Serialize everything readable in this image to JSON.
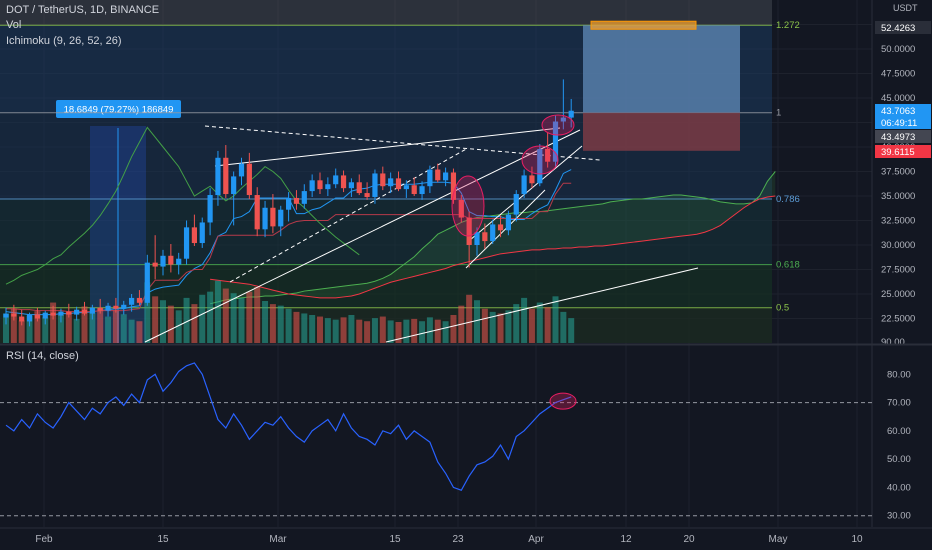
{
  "header": {
    "symbol_line": "DOT / TetherUS, 1D, BINANCE",
    "vol_label": "Vol",
    "ichimoku_label": "Ichimoku (9, 26, 52, 26)",
    "rsi_label": "RSI (14, close)",
    "currency": "USDT"
  },
  "measure_label": "18.6849 (79.27%) 186849",
  "colors": {
    "background": "#131722",
    "up": "#2196f3",
    "down": "#ef5350",
    "ichimoku_green": "#4caf50",
    "ichimoku_red": "#f23645",
    "rsi": "#2962ff",
    "target_zone": "#5b84b1",
    "stop_zone": "#7a3b45"
  },
  "price_axis": {
    "ticks": [
      "52.5000",
      "50.0000",
      "47.5000",
      "45.0000",
      "42.5000",
      "40.0000",
      "37.5000",
      "35.0000",
      "32.5000",
      "30.0000",
      "27.5000",
      "25.0000",
      "22.5000",
      "90.00"
    ],
    "badges": [
      {
        "text": "52.4263",
        "color": "#2a2e39"
      },
      {
        "text": "43.7063",
        "color": "#2196f3"
      },
      {
        "text": "06:49:11",
        "color": "#2196f3"
      },
      {
        "text": "43.4973",
        "color": "#434651"
      },
      {
        "text": "39.6115",
        "color": "#f23645"
      }
    ]
  },
  "rsi_axis": {
    "ticks": [
      "80.00",
      "70.00",
      "60.00",
      "50.00",
      "40.00",
      "30.00"
    ]
  },
  "fib_levels": [
    {
      "label": "1.272",
      "color": "#8bc34a"
    },
    {
      "label": "1",
      "color": "#9598a1"
    },
    {
      "label": "0.786",
      "color": "#5b9bd5"
    },
    {
      "label": "0.618",
      "color": "#4caf50"
    },
    {
      "label": "0.5",
      "color": "#8bc34a"
    }
  ],
  "time_axis": {
    "labels": [
      "Feb",
      "15",
      "Mar",
      "15",
      "23",
      "Apr",
      "12",
      "20",
      "May",
      "10"
    ]
  },
  "chart_data": [
    {
      "type": "candlestick",
      "title": "DOT / TetherUS, 1D, BINANCE",
      "ylim": [
        20.0,
        55.0
      ],
      "candles": [
        {
          "o": 22.6,
          "h": 23.6,
          "l": 21.9,
          "c": 23.0
        },
        {
          "o": 23.0,
          "h": 23.9,
          "l": 22.3,
          "c": 22.7
        },
        {
          "o": 22.7,
          "h": 23.4,
          "l": 21.8,
          "c": 22.2
        },
        {
          "o": 22.2,
          "h": 23.1,
          "l": 21.7,
          "c": 22.9
        },
        {
          "o": 22.9,
          "h": 23.6,
          "l": 22.2,
          "c": 22.5
        },
        {
          "o": 22.5,
          "h": 23.3,
          "l": 21.9,
          "c": 23.1
        },
        {
          "o": 23.1,
          "h": 23.8,
          "l": 22.4,
          "c": 22.8
        },
        {
          "o": 22.8,
          "h": 23.5,
          "l": 22.1,
          "c": 23.2
        },
        {
          "o": 23.2,
          "h": 24.0,
          "l": 22.6,
          "c": 22.9
        },
        {
          "o": 22.9,
          "h": 23.7,
          "l": 22.3,
          "c": 23.4
        },
        {
          "o": 23.4,
          "h": 24.2,
          "l": 22.8,
          "c": 23.0
        },
        {
          "o": 23.0,
          "h": 23.9,
          "l": 22.4,
          "c": 23.6
        },
        {
          "o": 23.6,
          "h": 24.5,
          "l": 23.0,
          "c": 23.3
        },
        {
          "o": 23.3,
          "h": 24.1,
          "l": 22.7,
          "c": 23.8
        },
        {
          "o": 23.8,
          "h": 24.6,
          "l": 23.1,
          "c": 23.5
        },
        {
          "o": 23.5,
          "h": 24.3,
          "l": 22.9,
          "c": 23.9
        },
        {
          "o": 23.9,
          "h": 25.0,
          "l": 23.2,
          "c": 24.6
        },
        {
          "o": 24.6,
          "h": 25.4,
          "l": 23.8,
          "c": 24.1
        },
        {
          "o": 24.1,
          "h": 29.0,
          "l": 23.8,
          "c": 28.2
        },
        {
          "o": 28.2,
          "h": 31.0,
          "l": 26.5,
          "c": 27.8
        },
        {
          "o": 27.8,
          "h": 29.5,
          "l": 26.9,
          "c": 28.9
        },
        {
          "o": 28.9,
          "h": 30.1,
          "l": 27.2,
          "c": 28.0
        },
        {
          "o": 28.0,
          "h": 29.2,
          "l": 27.0,
          "c": 28.6
        },
        {
          "o": 28.6,
          "h": 32.5,
          "l": 28.0,
          "c": 31.8
        },
        {
          "o": 31.8,
          "h": 33.1,
          "l": 29.9,
          "c": 30.2
        },
        {
          "o": 30.2,
          "h": 32.8,
          "l": 29.7,
          "c": 32.3
        },
        {
          "o": 32.3,
          "h": 35.8,
          "l": 31.0,
          "c": 35.1
        },
        {
          "o": 35.1,
          "h": 39.6,
          "l": 34.0,
          "c": 38.9
        },
        {
          "o": 38.9,
          "h": 40.2,
          "l": 34.8,
          "c": 35.2
        },
        {
          "o": 35.2,
          "h": 37.5,
          "l": 32.0,
          "c": 37.0
        },
        {
          "o": 37.0,
          "h": 38.9,
          "l": 36.1,
          "c": 38.3
        },
        {
          "o": 38.3,
          "h": 39.4,
          "l": 34.7,
          "c": 35.1
        },
        {
          "o": 35.1,
          "h": 35.9,
          "l": 30.9,
          "c": 31.6
        },
        {
          "o": 31.6,
          "h": 34.5,
          "l": 30.8,
          "c": 33.8
        },
        {
          "o": 33.8,
          "h": 35.2,
          "l": 31.2,
          "c": 31.9
        },
        {
          "o": 31.9,
          "h": 34.0,
          "l": 30.9,
          "c": 33.6
        },
        {
          "o": 33.6,
          "h": 35.4,
          "l": 32.4,
          "c": 34.8
        },
        {
          "o": 34.8,
          "h": 35.6,
          "l": 33.6,
          "c": 34.2
        },
        {
          "o": 34.2,
          "h": 36.2,
          "l": 33.7,
          "c": 35.5
        },
        {
          "o": 35.5,
          "h": 37.2,
          "l": 34.9,
          "c": 36.6
        },
        {
          "o": 36.6,
          "h": 37.4,
          "l": 35.2,
          "c": 35.7
        },
        {
          "o": 35.7,
          "h": 36.9,
          "l": 35.0,
          "c": 36.2
        },
        {
          "o": 36.2,
          "h": 37.8,
          "l": 35.8,
          "c": 37.1
        },
        {
          "o": 37.1,
          "h": 37.6,
          "l": 35.4,
          "c": 35.8
        },
        {
          "o": 35.8,
          "h": 36.8,
          "l": 34.9,
          "c": 36.4
        },
        {
          "o": 36.4,
          "h": 37.2,
          "l": 35.1,
          "c": 35.3
        },
        {
          "o": 35.3,
          "h": 36.4,
          "l": 34.6,
          "c": 34.9
        },
        {
          "o": 34.9,
          "h": 37.7,
          "l": 34.2,
          "c": 37.3
        },
        {
          "o": 37.3,
          "h": 38.0,
          "l": 35.6,
          "c": 36.0
        },
        {
          "o": 36.0,
          "h": 37.4,
          "l": 35.3,
          "c": 36.8
        },
        {
          "o": 36.8,
          "h": 37.5,
          "l": 35.5,
          "c": 35.7
        },
        {
          "o": 35.7,
          "h": 36.6,
          "l": 34.8,
          "c": 36.1
        },
        {
          "o": 36.1,
          "h": 36.9,
          "l": 35.0,
          "c": 35.2
        },
        {
          "o": 35.2,
          "h": 36.5,
          "l": 34.6,
          "c": 36.0
        },
        {
          "o": 36.0,
          "h": 38.1,
          "l": 35.3,
          "c": 37.7
        },
        {
          "o": 37.7,
          "h": 38.3,
          "l": 36.4,
          "c": 36.6
        },
        {
          "o": 36.6,
          "h": 37.9,
          "l": 36.0,
          "c": 37.4
        },
        {
          "o": 37.4,
          "h": 37.8,
          "l": 34.2,
          "c": 34.6
        },
        {
          "o": 34.6,
          "h": 35.1,
          "l": 32.3,
          "c": 32.8
        },
        {
          "o": 32.8,
          "h": 33.4,
          "l": 27.7,
          "c": 30.0
        },
        {
          "o": 30.0,
          "h": 31.8,
          "l": 28.9,
          "c": 31.3
        },
        {
          "o": 31.3,
          "h": 32.2,
          "l": 29.6,
          "c": 30.4
        },
        {
          "o": 30.4,
          "h": 32.6,
          "l": 30.1,
          "c": 32.1
        },
        {
          "o": 32.1,
          "h": 33.0,
          "l": 30.8,
          "c": 31.5
        },
        {
          "o": 31.5,
          "h": 33.5,
          "l": 31.0,
          "c": 33.1
        },
        {
          "o": 33.1,
          "h": 35.6,
          "l": 32.4,
          "c": 35.2
        },
        {
          "o": 35.2,
          "h": 37.7,
          "l": 34.8,
          "c": 37.1
        },
        {
          "o": 37.1,
          "h": 38.0,
          "l": 35.8,
          "c": 36.3
        },
        {
          "o": 36.3,
          "h": 40.3,
          "l": 36.0,
          "c": 39.8
        },
        {
          "o": 39.8,
          "h": 41.5,
          "l": 37.9,
          "c": 38.5
        },
        {
          "o": 38.5,
          "h": 43.2,
          "l": 38.0,
          "c": 42.6
        },
        {
          "o": 42.6,
          "h": 46.9,
          "l": 41.8,
          "c": 43.0
        },
        {
          "o": 43.0,
          "h": 44.9,
          "l": 42.0,
          "c": 43.7
        }
      ],
      "volume": [
        38,
        44,
        29,
        35,
        41,
        33,
        52,
        36,
        40,
        31,
        47,
        39,
        45,
        34,
        42,
        37,
        30,
        28,
        78,
        60,
        55,
        48,
        42,
        58,
        50,
        62,
        66,
        80,
        70,
        64,
        58,
        66,
        72,
        54,
        50,
        48,
        44,
        40,
        38,
        36,
        34,
        32,
        30,
        33,
        36,
        30,
        28,
        32,
        34,
        29,
        27,
        30,
        31,
        28,
        33,
        30,
        28,
        36,
        48,
        62,
        55,
        44,
        40,
        38,
        42,
        50,
        58,
        44,
        52,
        46,
        60,
        40,
        32
      ],
      "ichimoku": {
        "tenkan": [
          23.2,
          23.1,
          23.0,
          22.9,
          22.9,
          22.9,
          22.9,
          23.0,
          23.0,
          23.1,
          23.1,
          23.2,
          23.3,
          23.4,
          23.5,
          23.5,
          23.7,
          23.8,
          25.1,
          25.5,
          25.7,
          25.8,
          25.9,
          26.9,
          27.6,
          28.0,
          29.2,
          30.9,
          31.3,
          32.7,
          32.9,
          33.4,
          34.8,
          34.8,
          34.8,
          34.8,
          34.8,
          33.2,
          33.2,
          33.6,
          33.8,
          34.3,
          34.8,
          34.8,
          35.5,
          35.7,
          35.8,
          36.1,
          36.2,
          36.2,
          36.2,
          36.2,
          36.2,
          36.3,
          36.4,
          36.4,
          36.4,
          36.3,
          35.3,
          33.4,
          33.0,
          33.0,
          32.9,
          32.9,
          32.6,
          32.6,
          32.6,
          33.2,
          33.7,
          34.1,
          35.6,
          37.3,
          37.7
        ],
        "kijun": [
          23.5,
          23.5,
          23.4,
          23.4,
          23.3,
          23.3,
          23.3,
          23.3,
          23.2,
          23.2,
          23.2,
          23.2,
          23.3,
          23.3,
          23.3,
          23.3,
          23.4,
          23.5,
          25.4,
          26.4,
          26.4,
          26.4,
          26.4,
          27.2,
          27.5,
          27.5,
          28.7,
          30.9,
          31.0,
          31.0,
          31.0,
          31.0,
          31.0,
          31.0,
          31.0,
          31.5,
          32.1,
          32.4,
          32.5,
          32.5,
          32.5,
          32.5,
          33.1,
          33.1,
          33.1,
          33.1,
          33.1,
          33.1,
          33.1,
          33.1,
          33.1,
          33.1,
          33.1,
          33.1,
          33.1,
          33.1,
          33.1,
          33.1,
          33.1,
          32.7,
          32.7,
          32.7,
          32.7,
          32.7,
          32.7,
          32.7,
          32.7,
          32.7,
          33.4,
          33.4,
          35.2,
          36.3,
          36.3
        ],
        "span_a": [
          24.0,
          24.2,
          24.4,
          24.5,
          24.6,
          24.7,
          24.7,
          24.8,
          24.8,
          24.9,
          25.0,
          25.1,
          25.3,
          25.4,
          25.5,
          25.6,
          25.7,
          25.8,
          25.9,
          26.0,
          26.1,
          26.3,
          26.6,
          27.0,
          27.6,
          28.2,
          28.8,
          29.6,
          30.3,
          31.1,
          31.5,
          31.9,
          32.3,
          32.6,
          32.8,
          32.9,
          33.0,
          33.1,
          33.2,
          33.3,
          33.3,
          33.4,
          33.4,
          33.5,
          33.6,
          33.7,
          33.8,
          33.9,
          34.0,
          34.1,
          34.2,
          34.4,
          34.5,
          34.6,
          34.7,
          34.7,
          34.8,
          34.9,
          35.0,
          35.1,
          35.1,
          35.0,
          34.9,
          34.8,
          34.6,
          34.4,
          34.3,
          34.2,
          34.2,
          34.3,
          35.0,
          36.5,
          37.5
        ],
        "span_b": [
          26.5,
          26.4,
          26.3,
          26.2,
          26.1,
          26.0,
          25.8,
          25.6,
          25.4,
          25.2,
          25.0,
          24.9,
          24.8,
          24.7,
          24.6,
          24.6,
          24.6,
          24.7,
          24.8,
          25.0,
          25.3,
          25.6,
          25.9,
          26.2,
          26.4,
          26.6,
          26.8,
          27.0,
          27.2,
          27.4,
          27.6,
          27.9,
          28.1,
          28.3,
          28.5,
          28.7,
          28.9,
          29.1,
          29.2,
          29.3,
          29.4,
          29.5,
          29.5,
          29.6,
          29.6,
          29.7,
          29.7,
          29.8,
          29.8,
          29.9,
          29.9,
          30.0,
          30.1,
          30.2,
          30.3,
          30.4,
          30.5,
          30.6,
          30.7,
          30.8,
          30.9,
          31.0,
          31.1,
          31.3,
          31.6,
          32.0,
          32.6,
          33.2,
          33.8,
          34.3,
          34.7,
          34.9,
          35.0
        ],
        "chikou": [
          26.0,
          26.4,
          26.9,
          27.2,
          27.5,
          28.0,
          28.6,
          29.0,
          29.8,
          30.5,
          31.2,
          32.0,
          33.0,
          34.2,
          35.5,
          37.2,
          39.0,
          40.5,
          42.0,
          41.0,
          40.0,
          39.0,
          38.0,
          36.5,
          35.0,
          35.5,
          36.0,
          35.2,
          34.5,
          35.0,
          35.8,
          36.5,
          37.2,
          38.0,
          37.5,
          36.8,
          35.6,
          34.5,
          33.8,
          33.0,
          32.2,
          31.5,
          30.8,
          30.2,
          29.6,
          29.0
        ]
      },
      "fib_prices": {
        "1.272": 52.4263,
        "1": 43.4973,
        "0.786": 34.7,
        "0.618": 28.0,
        "0.5": 23.6
      },
      "long_position": {
        "entry": 43.4973,
        "target": 52.4263,
        "stop": 39.6115
      }
    },
    {
      "type": "line",
      "title": "RSI (14, close)",
      "ylim": [
        26,
        90
      ],
      "guides": [
        70
      ],
      "values": [
        62,
        60,
        64,
        61,
        66,
        63,
        61,
        65,
        70,
        67,
        64,
        68,
        66,
        70,
        72,
        69,
        73,
        70,
        78,
        80,
        74,
        77,
        81,
        83,
        84,
        80,
        72,
        64,
        61,
        66,
        62,
        57,
        60,
        63,
        62,
        65,
        61,
        58,
        56,
        60,
        62,
        64,
        60,
        66,
        61,
        58,
        57,
        55,
        60,
        59,
        62,
        57,
        60,
        58,
        56,
        49,
        45,
        40,
        39,
        44,
        48,
        49,
        51,
        55,
        50,
        58,
        60,
        63,
        66,
        68,
        70,
        71,
        72
      ]
    }
  ]
}
